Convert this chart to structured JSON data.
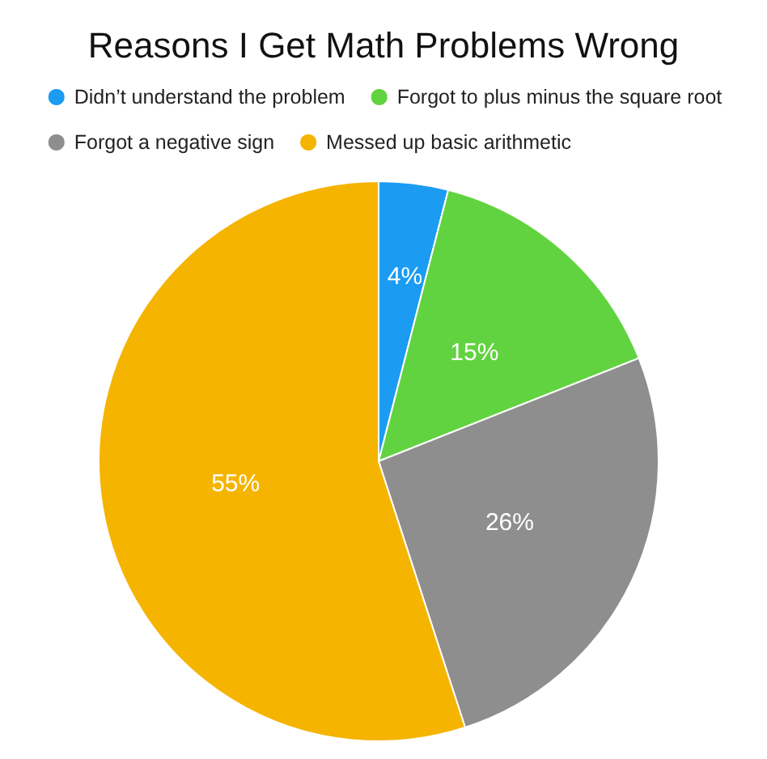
{
  "chart_data": {
    "type": "pie",
    "title": "Reasons I Get Math Problems Wrong",
    "categories": [
      "Didn’t understand the problem",
      "Forgot to plus minus the square root",
      "Forgot a negative sign",
      "Messed up basic arithmetic"
    ],
    "values": [
      4,
      15,
      26,
      55
    ],
    "colors": [
      "#1b9cf2",
      "#62d340",
      "#8e8e8e",
      "#f5b400"
    ],
    "value_labels": [
      "4%",
      "15%",
      "26%",
      "55%"
    ],
    "legend": "top"
  }
}
